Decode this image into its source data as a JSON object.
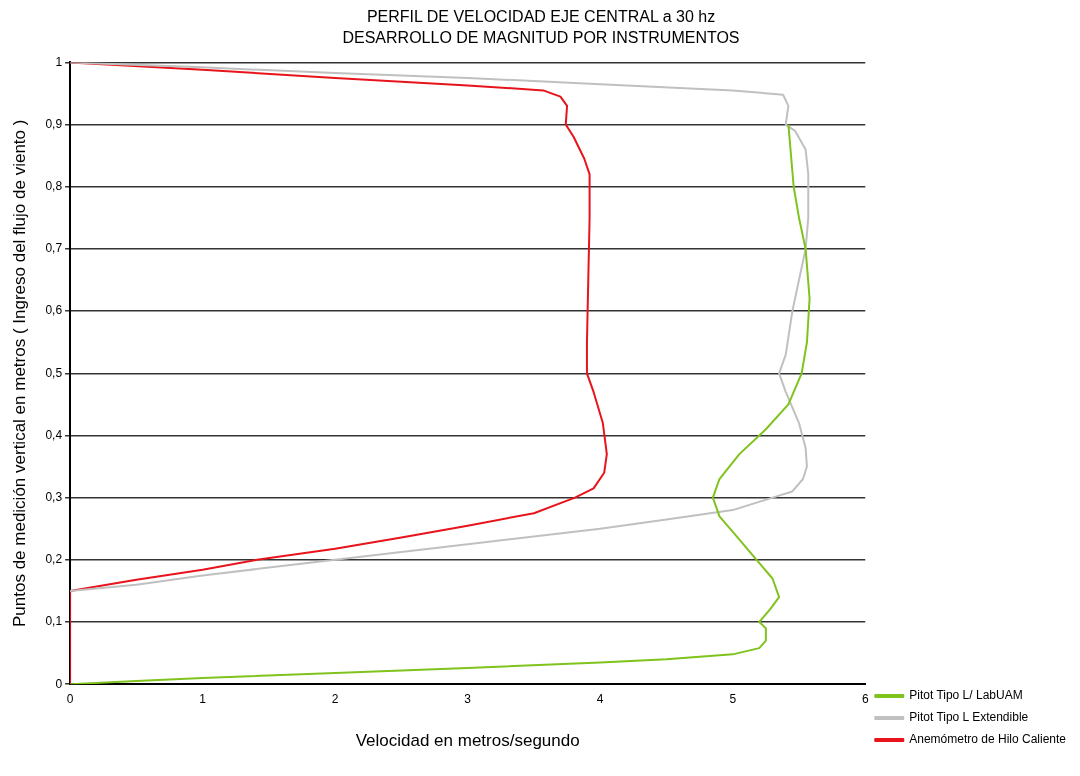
{
  "chart_data": {
    "type": "line",
    "title": "PERFIL DE VELOCIDAD EJE CENTRAL a 30 hz",
    "subtitle": "DESARROLLO DE MAGNITUD POR INSTRUMENTOS",
    "xlabel": "Velocidad en metros/segundo",
    "ylabel": "Puntos de medición vertical en metros ( Ingreso del flujo de viento )",
    "xlim": [
      0,
      6
    ],
    "xticks": [
      0,
      1,
      2,
      3,
      4,
      5,
      6
    ],
    "ylim": [
      0,
      1
    ],
    "yticks": [
      0,
      {
        "value": 0.1,
        "label": "0,1"
      },
      {
        "value": 0.2,
        "label": "0,2"
      },
      {
        "value": 0.3,
        "label": "0,3"
      },
      {
        "value": 0.4,
        "label": "0,4"
      },
      {
        "value": 0.5,
        "label": "0,5"
      },
      {
        "value": 0.6,
        "label": "0,6"
      },
      {
        "value": 0.7,
        "label": "0,7"
      },
      {
        "value": 0.8,
        "label": "0,8"
      },
      {
        "value": 0.9,
        "label": "0,9"
      },
      1
    ],
    "grid": "y",
    "legend": "bottom right",
    "marker": "none",
    "line_style": "solid",
    "series": [
      {
        "name": "Pitot Tipo L/ LabUAM",
        "color": "#7fc31c",
        "x": [
          0,
          0.5,
          1,
          2,
          3,
          4,
          4.5,
          5,
          5.2,
          5.25,
          5.25,
          5.2,
          5.28,
          5.35,
          5.3,
          5.18,
          5.02,
          4.9,
          4.85,
          4.9,
          5.05,
          5.25,
          5.42,
          5.52,
          5.56,
          5.58,
          5.55,
          5.5,
          5.46,
          5.42
        ],
        "values": [
          0,
          0.005,
          0.01,
          0.018,
          0.026,
          0.035,
          0.04,
          0.048,
          0.058,
          0.07,
          0.09,
          0.1,
          0.12,
          0.14,
          0.17,
          0.2,
          0.24,
          0.27,
          0.3,
          0.33,
          0.37,
          0.41,
          0.45,
          0.5,
          0.55,
          0.62,
          0.7,
          0.75,
          0.8,
          0.9
        ]
      },
      {
        "name": "Pitot Tipo L Extendible",
        "color": "#c0c0c0",
        "x": [
          0,
          0.5,
          1,
          2,
          3,
          4,
          4.5,
          5,
          5.3,
          5.45,
          5.53,
          5.56,
          5.55,
          5.5,
          5.4,
          5.35,
          5.4,
          5.45,
          5.5,
          5.55,
          5.57,
          5.57,
          5.55,
          5.47,
          5.4,
          5.42,
          5.38,
          5,
          4,
          3,
          2,
          1,
          0
        ],
        "values": [
          0.15,
          0.16,
          0.175,
          0.2,
          0.225,
          0.25,
          0.265,
          0.28,
          0.3,
          0.31,
          0.33,
          0.35,
          0.38,
          0.42,
          0.47,
          0.5,
          0.53,
          0.6,
          0.65,
          0.7,
          0.75,
          0.82,
          0.86,
          0.89,
          0.9,
          0.93,
          0.948,
          0.955,
          0.965,
          0.975,
          0.983,
          0.992,
          1
        ]
      },
      {
        "name": "Anemómetro de Hilo Caliente",
        "color": "#e8141c",
        "x": [
          0,
          0,
          0,
          0.5,
          1,
          1.41,
          2,
          2.5,
          3,
          3.5,
          3.81,
          3.95,
          4.03,
          4.05,
          4.02,
          3.95,
          3.9,
          3.9,
          3.91,
          3.92,
          3.92,
          3.88,
          3.8,
          3.74,
          3.75,
          3.7,
          3.57,
          3,
          2,
          1,
          0
        ],
        "values": [
          0,
          0.1,
          0.15,
          0.168,
          0.184,
          0.2,
          0.218,
          0.236,
          0.255,
          0.275,
          0.3,
          0.315,
          0.34,
          0.37,
          0.42,
          0.47,
          0.5,
          0.55,
          0.65,
          0.75,
          0.82,
          0.845,
          0.88,
          0.9,
          0.93,
          0.945,
          0.955,
          0.963,
          0.975,
          0.988,
          1
        ]
      }
    ]
  }
}
